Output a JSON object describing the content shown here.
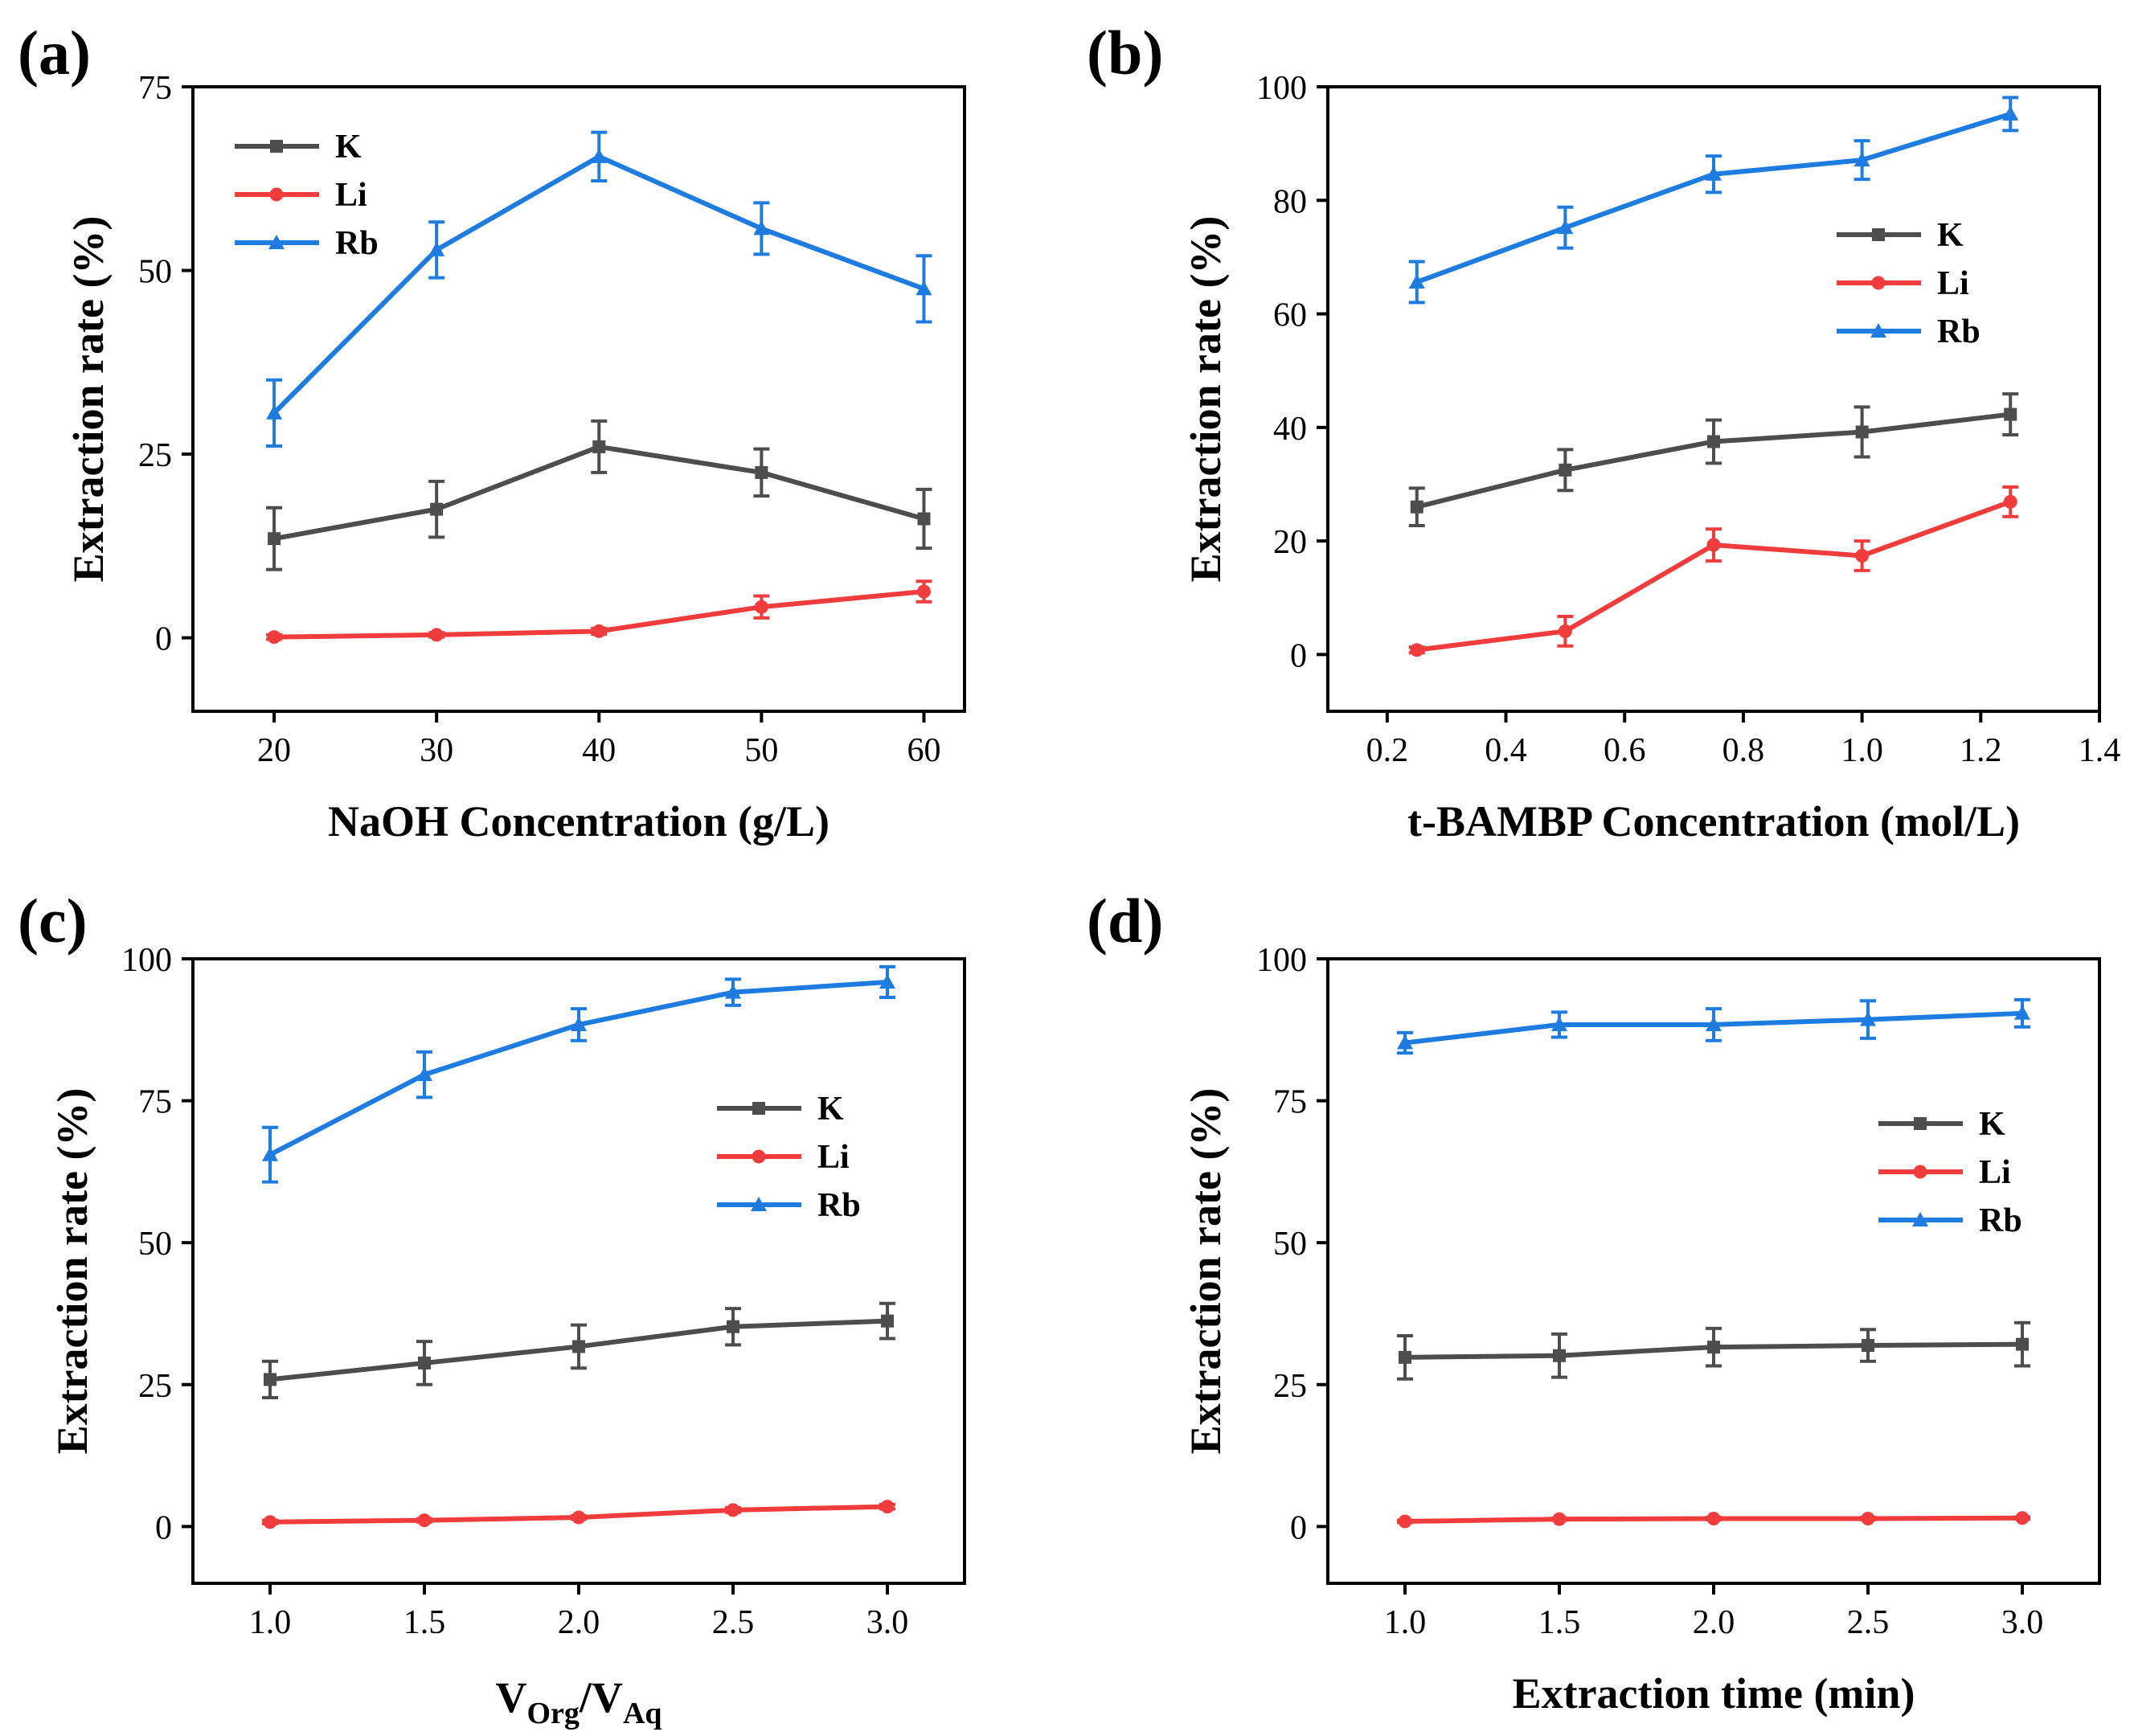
{
  "figure": {
    "panels": [
      "(a)",
      "(b)",
      "(c)",
      "(d)"
    ]
  },
  "chart_data": [
    {
      "panel": "(a)",
      "type": "line",
      "xlabel": "NaOH Concentration (g/L)",
      "ylabel": "Extraction rate (%)",
      "xlim": [
        15,
        62.5
      ],
      "ylim": [
        -10,
        75
      ],
      "xticks": [
        20,
        30,
        40,
        50,
        60
      ],
      "yticks": [
        0,
        25,
        50,
        75
      ],
      "xtick_labels": [
        "20",
        "30",
        "40",
        "50",
        "60"
      ],
      "ytick_labels": [
        "0",
        "25",
        "50",
        "75"
      ],
      "legend": "top-left",
      "x": [
        20,
        30,
        40,
        50,
        60
      ],
      "series": [
        {
          "name": "K",
          "marker": "square",
          "color": "#4d4d4d",
          "values": [
            13.5,
            17.5,
            26,
            22.5,
            16.2
          ],
          "errors": [
            4.2,
            3.8,
            3.5,
            3.2,
            4.0
          ]
        },
        {
          "name": "Li",
          "marker": "circle",
          "color": "#f03c3c",
          "values": [
            0.1,
            0.4,
            0.9,
            4.2,
            6.3
          ],
          "errors": [
            0.3,
            0.3,
            0.4,
            1.5,
            1.4
          ]
        },
        {
          "name": "Rb",
          "marker": "triangle",
          "color": "#1e7be0",
          "values": [
            30.6,
            52.8,
            65.5,
            55.7,
            47.5
          ],
          "errors": [
            4.5,
            3.8,
            3.3,
            3.5,
            4.5
          ]
        }
      ]
    },
    {
      "panel": "(b)",
      "type": "line",
      "xlabel": "t-BAMBP Concentration (mol/L)",
      "ylabel": "Extraction rate (%)",
      "xlim": [
        0.1,
        1.4
      ],
      "ylim": [
        -10,
        100
      ],
      "xticks": [
        0.2,
        0.4,
        0.6,
        0.8,
        1.0,
        1.2,
        1.4
      ],
      "yticks": [
        0,
        20,
        40,
        60,
        80,
        100
      ],
      "xtick_labels": [
        "0.2",
        "0.4",
        "0.6",
        "0.8",
        "1.0",
        "1.2",
        "1.4"
      ],
      "ytick_labels": [
        "0",
        "20",
        "40",
        "60",
        "80",
        "100"
      ],
      "legend": "center-right",
      "x": [
        0.25,
        0.5,
        0.75,
        1.0,
        1.25
      ],
      "series": [
        {
          "name": "K",
          "marker": "square",
          "color": "#4d4d4d",
          "values": [
            26,
            32.5,
            37.5,
            39.2,
            42.3
          ],
          "errors": [
            3.3,
            3.6,
            3.8,
            4.4,
            3.6
          ]
        },
        {
          "name": "Li",
          "marker": "circle",
          "color": "#f03c3c",
          "values": [
            0.8,
            4.1,
            19.3,
            17.4,
            26.9
          ],
          "errors": [
            0.5,
            2.6,
            2.8,
            2.6,
            2.6
          ]
        },
        {
          "name": "Rb",
          "marker": "triangle",
          "color": "#1e7be0",
          "values": [
            65.6,
            75.2,
            84.6,
            87.1,
            95.2
          ],
          "errors": [
            3.6,
            3.6,
            3.2,
            3.4,
            2.9
          ]
        }
      ]
    },
    {
      "panel": "(c)",
      "type": "line",
      "xlabel": "V_Org/V_Aq",
      "xlabel_parts": {
        "v1": "V",
        "sub1": "Org",
        "slash": "/",
        "v2": "V",
        "sub2": "Aq"
      },
      "ylabel": "Extraction rate (%)",
      "xlim": [
        0.75,
        3.25
      ],
      "ylim": [
        -10,
        100
      ],
      "xticks": [
        1.0,
        1.5,
        2.0,
        2.5,
        3.0
      ],
      "yticks": [
        0,
        25,
        50,
        75,
        100
      ],
      "xtick_labels": [
        "1.0",
        "1.5",
        "2.0",
        "2.5",
        "3.0"
      ],
      "ytick_labels": [
        "0",
        "25",
        "50",
        "75",
        "100"
      ],
      "legend": "center-right",
      "x": [
        1.0,
        1.5,
        2.0,
        2.5,
        3.0
      ],
      "series": [
        {
          "name": "K",
          "marker": "square",
          "color": "#4d4d4d",
          "values": [
            25.9,
            28.8,
            31.7,
            35.2,
            36.2
          ],
          "errors": [
            3.2,
            3.8,
            3.8,
            3.2,
            3.1
          ]
        },
        {
          "name": "Li",
          "marker": "circle",
          "color": "#f03c3c",
          "values": [
            0.8,
            1.1,
            1.6,
            2.9,
            3.5
          ],
          "errors": [
            0.3,
            0.3,
            0.3,
            0.4,
            0.4
          ]
        },
        {
          "name": "Rb",
          "marker": "triangle",
          "color": "#1e7be0",
          "values": [
            65.5,
            79.6,
            88.4,
            94.1,
            95.9
          ],
          "errors": [
            4.8,
            4.0,
            2.8,
            2.3,
            2.7
          ]
        }
      ]
    },
    {
      "panel": "(d)",
      "type": "line",
      "xlabel": "Extraction time (min)",
      "ylabel": "Extraction rate (%)",
      "xlim": [
        0.75,
        3.25
      ],
      "ylim": [
        -10,
        100
      ],
      "xticks": [
        1.0,
        1.5,
        2.0,
        2.5,
        3.0
      ],
      "yticks": [
        0,
        25,
        50,
        75,
        100
      ],
      "xtick_labels": [
        "1.0",
        "1.5",
        "2.0",
        "2.5",
        "3.0"
      ],
      "ytick_labels": [
        "0",
        "25",
        "50",
        "75",
        "100"
      ],
      "legend": "center-right",
      "x": [
        1.0,
        1.5,
        2.0,
        2.5,
        3.0
      ],
      "series": [
        {
          "name": "K",
          "marker": "square",
          "color": "#4d4d4d",
          "values": [
            29.8,
            30.1,
            31.6,
            31.9,
            32.1
          ],
          "errors": [
            3.8,
            3.8,
            3.3,
            2.8,
            3.8
          ]
        },
        {
          "name": "Li",
          "marker": "circle",
          "color": "#f03c3c",
          "values": [
            0.9,
            1.3,
            1.4,
            1.4,
            1.5
          ],
          "errors": [
            0.2,
            0.2,
            0.2,
            0.2,
            0.2
          ]
        },
        {
          "name": "Rb",
          "marker": "triangle",
          "color": "#1e7be0",
          "values": [
            85.2,
            88.4,
            88.4,
            89.3,
            90.4
          ],
          "errors": [
            1.8,
            2.2,
            2.8,
            3.3,
            2.4
          ]
        }
      ]
    }
  ]
}
